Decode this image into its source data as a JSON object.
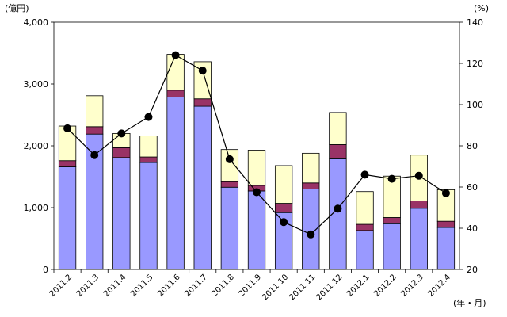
{
  "chart_data": {
    "type": "bar",
    "categories": [
      "2011.2",
      "2011.3",
      "2011.4",
      "2011.5",
      "2011.6",
      "2011.7",
      "2011.8",
      "2011.9",
      "2011.10",
      "2011.11",
      "2011.12",
      "2012.1",
      "2012.2",
      "2012.3",
      "2012.4"
    ],
    "bar_series": [
      {
        "values": [
          1660,
          2190,
          1810,
          1730,
          2790,
          2640,
          1330,
          1270,
          920,
          1300,
          1790,
          630,
          740,
          990,
          680
        ],
        "color": "#9999ff"
      },
      {
        "values": [
          100,
          120,
          160,
          90,
          110,
          120,
          90,
          90,
          150,
          100,
          230,
          100,
          100,
          120,
          100
        ],
        "color": "#993366"
      },
      {
        "values": [
          560,
          500,
          230,
          340,
          580,
          600,
          520,
          570,
          610,
          480,
          520,
          530,
          670,
          740,
          510
        ],
        "color": "#ffffcc"
      }
    ],
    "line_series": [
      {
        "values": [
          88.5,
          75.5,
          86,
          94,
          124,
          116.5,
          73.5,
          57.5,
          43,
          37,
          49.5,
          66,
          64,
          65.5,
          57
        ],
        "color": "#000000"
      }
    ],
    "y_left": {
      "unit_label": "(億円)",
      "ticks": [
        "0",
        "1,000",
        "2,000",
        "3,000",
        "4,000"
      ],
      "range": [
        0,
        4000
      ]
    },
    "y_right": {
      "unit_label": "(%)",
      "ticks": [
        "20",
        "40",
        "60",
        "80",
        "100",
        "120",
        "140"
      ],
      "range": [
        20,
        140
      ]
    },
    "x_unit_label": "(年・月)"
  }
}
